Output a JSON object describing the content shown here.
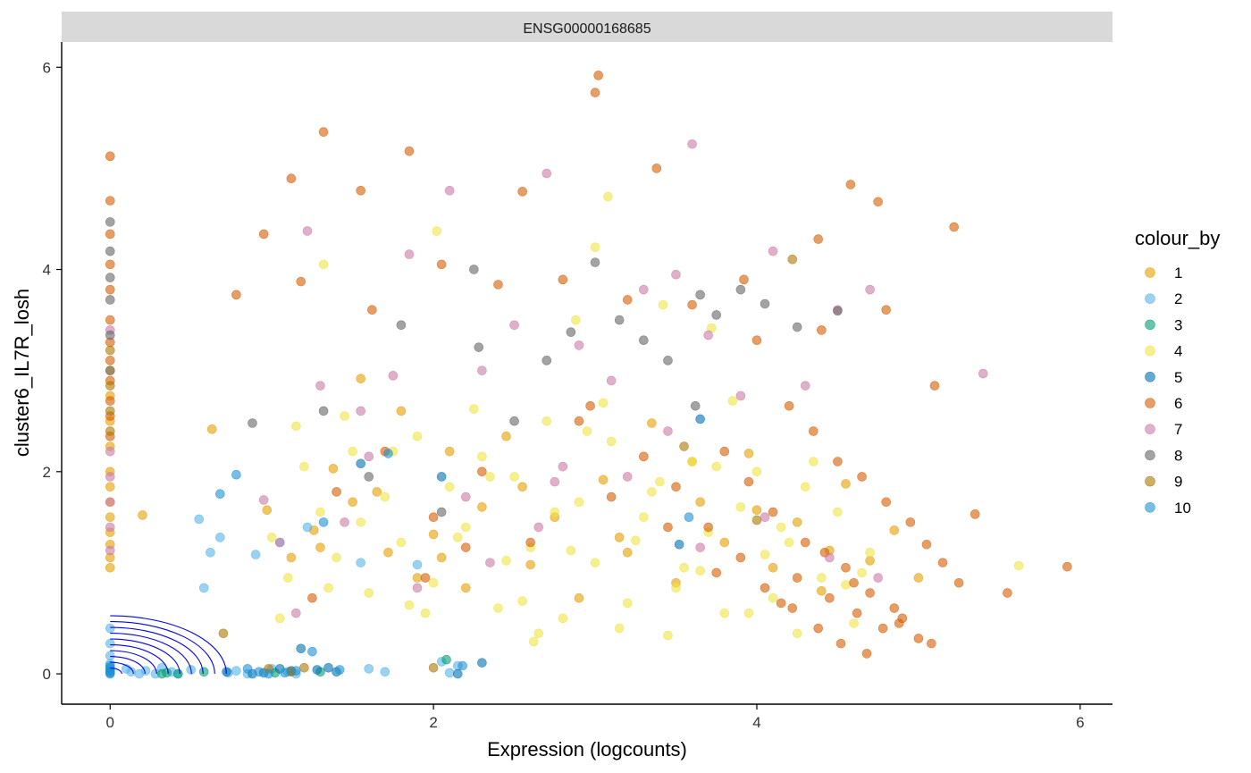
{
  "chart_data": {
    "type": "scatter",
    "title": "",
    "facet_label": "ENSG00000168685",
    "xlabel": "Expression (logcounts)",
    "ylabel": "cluster6_IL7R_losh",
    "xlim": [
      -0.3,
      6.2
    ],
    "ylim": [
      -0.3,
      6.25
    ],
    "xticks": [
      0,
      2,
      4,
      6
    ],
    "yticks": [
      0,
      2,
      4,
      6
    ],
    "grid": false,
    "legend": {
      "title": "colour_by",
      "placement": "right",
      "entries": [
        {
          "label": "1",
          "color": "#E69F00"
        },
        {
          "label": "2",
          "color": "#56B4E9"
        },
        {
          "label": "3",
          "color": "#009E73"
        },
        {
          "label": "4",
          "color": "#F0E442"
        },
        {
          "label": "5",
          "color": "#0072B2"
        },
        {
          "label": "6",
          "color": "#D55E00"
        },
        {
          "label": "7",
          "color": "#CC79A7"
        },
        {
          "label": "8",
          "color": "#666666"
        },
        {
          "label": "9",
          "color": "#AD7700"
        },
        {
          "label": "10",
          "color": "#1C91D4"
        }
      ]
    },
    "point_alpha": 0.6,
    "series": [
      {
        "name": "1",
        "color": "#E69F00",
        "x": [
          0,
          0,
          0,
          0,
          0,
          0,
          0,
          0,
          0,
          0,
          0,
          0,
          0.2,
          0.63,
          0.97,
          1.12,
          1.26,
          1.38,
          1.55,
          1.65,
          1.72,
          1.8,
          1.9,
          2.0,
          2.1,
          2.2,
          2.3,
          2.45,
          2.6,
          2.75,
          2.9,
          3.05,
          3.2,
          3.35,
          3.5,
          3.65,
          3.8,
          3.95,
          4.1,
          4.25,
          4.4,
          4.55,
          4.7,
          4.85,
          5.0,
          1.3,
          1.5,
          2.05,
          2.55,
          3.15,
          3.6,
          4.0,
          4.45
        ],
        "y": [
          1.05,
          1.15,
          1.28,
          1.4,
          1.55,
          1.7,
          1.85,
          2.0,
          2.25,
          2.5,
          2.75,
          3.0,
          1.57,
          2.42,
          1.62,
          1.15,
          1.42,
          2.03,
          2.92,
          1.8,
          1.2,
          2.6,
          0.95,
          1.38,
          2.2,
          0.85,
          1.65,
          2.35,
          1.08,
          1.55,
          0.75,
          1.92,
          1.2,
          2.48,
          0.9,
          1.7,
          1.3,
          2.18,
          1.05,
          1.5,
          0.82,
          1.88,
          1.12,
          1.42,
          0.95,
          1.25,
          1.7,
          1.15,
          1.85,
          1.35,
          2.1,
          1.62,
          1.22
        ]
      },
      {
        "name": "2",
        "color": "#56B4E9",
        "x": [
          0,
          0,
          0,
          0,
          0,
          0,
          0.1,
          0.13,
          0.18,
          0.22,
          0.28,
          0.32,
          0.38,
          0.42,
          0.5,
          0.55,
          0.58,
          0.62,
          0.68,
          0.73,
          0.78,
          0.85,
          0.9,
          1.0,
          1.05,
          1.1,
          1.15,
          1.22,
          1.55,
          1.6,
          1.7,
          1.9,
          2.05,
          2.1,
          2.15
        ],
        "y": [
          0.02,
          0.05,
          0.1,
          0.18,
          0.3,
          0.45,
          0.05,
          0.02,
          0.0,
          0.03,
          0.0,
          0.06,
          0.02,
          0.0,
          0.04,
          1.53,
          0.85,
          1.2,
          1.35,
          0.01,
          0.03,
          0.0,
          1.18,
          0.05,
          1.3,
          0.02,
          0.0,
          1.45,
          1.1,
          0.05,
          0.02,
          1.08,
          0.12,
          0.01,
          0.08
        ]
      },
      {
        "name": "3",
        "color": "#009E73",
        "x": [
          0.32,
          0.35,
          0.42,
          0.58,
          1.02,
          1.3,
          2.08
        ],
        "y": [
          0.0,
          0.01,
          0.0,
          0.02,
          0.01,
          0.02,
          0.14
        ]
      },
      {
        "name": "4",
        "color": "#F0E442",
        "x": [
          1.0,
          1.1,
          1.2,
          1.3,
          1.4,
          1.5,
          1.6,
          1.7,
          1.8,
          1.9,
          2.0,
          2.1,
          2.2,
          2.3,
          2.4,
          2.5,
          2.6,
          2.7,
          2.8,
          2.9,
          3.0,
          3.1,
          3.2,
          3.3,
          3.4,
          3.5,
          3.6,
          3.7,
          3.8,
          3.9,
          4.0,
          4.1,
          4.2,
          4.3,
          4.4,
          4.5,
          4.6,
          4.7,
          1.15,
          1.35,
          1.55,
          1.75,
          1.95,
          2.15,
          2.35,
          2.55,
          2.75,
          2.95,
          3.15,
          3.35,
          3.55,
          3.75,
          3.95,
          4.15,
          4.35,
          4.55,
          1.05,
          1.45,
          1.85,
          2.25,
          2.65,
          3.05,
          3.45,
          3.85,
          4.25,
          4.65,
          2.45,
          2.85,
          3.25,
          3.65,
          4.05,
          3.08,
          1.32,
          2.02,
          2.88,
          3.72,
          5.62,
          3.0,
          2.62,
          3.42
        ],
        "y": [
          1.35,
          0.95,
          2.05,
          1.6,
          1.15,
          2.2,
          0.8,
          1.75,
          1.3,
          2.35,
          0.9,
          1.85,
          1.45,
          2.15,
          0.65,
          1.95,
          1.25,
          2.5,
          0.55,
          1.7,
          1.1,
          2.3,
          0.7,
          1.55,
          1.9,
          0.85,
          2.1,
          1.4,
          0.6,
          1.65,
          2.0,
          0.75,
          1.3,
          1.85,
          0.95,
          1.6,
          0.5,
          1.2,
          2.45,
          0.85,
          1.5,
          2.2,
          0.6,
          1.35,
          1.95,
          0.72,
          1.6,
          2.4,
          0.45,
          1.8,
          1.05,
          2.05,
          0.6,
          1.45,
          2.1,
          0.88,
          0.55,
          2.55,
          0.68,
          2.62,
          0.4,
          2.68,
          0.38,
          2.7,
          0.4,
          1.0,
          1.12,
          1.22,
          1.32,
          1.02,
          1.18,
          4.72,
          4.05,
          4.38,
          3.5,
          3.42,
          1.07,
          4.22,
          0.32,
          3.65
        ]
      },
      {
        "name": "5",
        "color": "#0072B2",
        "x": [
          0.72,
          0.88,
          0.95,
          1.05,
          1.12,
          1.18,
          1.28,
          1.35,
          1.4,
          1.55,
          2.05,
          2.15,
          2.3,
          3.52,
          3.65
        ],
        "y": [
          0.02,
          0.0,
          0.01,
          0.05,
          0.03,
          0.25,
          0.04,
          0.06,
          0.02,
          2.08,
          1.95,
          0.0,
          0.11,
          1.28,
          2.52
        ]
      },
      {
        "name": "6",
        "color": "#D55E00",
        "x": [
          0,
          0,
          0,
          0,
          0,
          0,
          0,
          0,
          0,
          0,
          0,
          0,
          1.12,
          1.32,
          1.55,
          1.85,
          2.55,
          3.02,
          3.38,
          3.92,
          4.38,
          4.58,
          4.75,
          5.22,
          0.78,
          0.95,
          1.18,
          1.62,
          2.05,
          2.4,
          2.8,
          3.2,
          3.6,
          4.0,
          4.4,
          4.8,
          5.1,
          5.35,
          5.55,
          5.92,
          4.2,
          4.35,
          4.5,
          4.65,
          4.8,
          4.95,
          5.05,
          5.15,
          4.25,
          4.45,
          4.62,
          4.78,
          4.9,
          5.0,
          3.8,
          3.95,
          4.1,
          4.3,
          4.55,
          4.7,
          4.85,
          5.25,
          3.5,
          3.7,
          3.9,
          4.05,
          4.22,
          4.38,
          4.52,
          4.68,
          1.4,
          1.7,
          2.0,
          2.3,
          2.6,
          2.9,
          3.1,
          3.3,
          3.45,
          3.75,
          4.15,
          4.42,
          4.6,
          4.88,
          5.08,
          3.0,
          2.97,
          2.2,
          1.95,
          1.25
        ],
        "y": [
          5.12,
          4.68,
          4.35,
          4.05,
          3.8,
          3.5,
          3.28,
          3.1,
          2.9,
          2.7,
          2.55,
          2.35,
          4.9,
          5.36,
          4.78,
          5.17,
          4.77,
          5.92,
          5.0,
          3.9,
          4.3,
          4.84,
          4.67,
          4.42,
          3.75,
          4.35,
          3.88,
          3.6,
          4.05,
          3.85,
          3.9,
          3.7,
          3.65,
          3.3,
          3.4,
          3.6,
          2.85,
          1.58,
          0.8,
          1.06,
          2.65,
          2.4,
          2.1,
          1.95,
          1.7,
          1.5,
          1.28,
          1.1,
          0.95,
          0.75,
          0.6,
          0.45,
          0.55,
          0.35,
          2.2,
          1.9,
          1.6,
          1.3,
          1.05,
          0.8,
          0.65,
          0.9,
          1.85,
          1.45,
          1.15,
          0.85,
          0.65,
          0.45,
          0.3,
          0.2,
          1.8,
          2.2,
          1.55,
          2.0,
          1.3,
          2.5,
          1.75,
          2.15,
          1.45,
          1.0,
          0.7,
          1.2,
          0.9,
          0.5,
          0.3,
          5.75,
          2.65,
          1.25,
          0.95,
          0.75
        ]
      },
      {
        "name": "7",
        "color": "#CC79A7",
        "x": [
          0,
          0,
          0,
          0,
          0,
          0,
          1.22,
          1.3,
          1.55,
          1.75,
          1.85,
          2.1,
          2.3,
          2.5,
          2.7,
          2.9,
          3.1,
          3.3,
          3.5,
          3.7,
          3.9,
          4.1,
          4.3,
          4.5,
          4.7,
          5.4,
          3.6,
          2.75,
          0.95,
          1.15,
          1.45,
          1.9,
          2.35,
          2.8,
          3.2,
          3.65,
          4.05,
          4.45,
          4.75,
          1.05,
          1.6,
          2.2,
          2.65,
          3.45
        ],
        "y": [
          1.22,
          1.45,
          1.7,
          1.95,
          2.2,
          3.4,
          4.38,
          2.85,
          2.6,
          2.95,
          4.15,
          4.78,
          3.0,
          3.45,
          4.95,
          3.25,
          2.9,
          3.8,
          3.95,
          3.35,
          2.75,
          4.18,
          2.85,
          3.6,
          3.8,
          2.97,
          5.24,
          1.9,
          1.72,
          0.6,
          1.5,
          0.85,
          1.1,
          2.05,
          1.95,
          1.25,
          1.55,
          1.15,
          0.95,
          1.3,
          2.15,
          1.75,
          1.45,
          2.4
        ]
      },
      {
        "name": "8",
        "color": "#666666",
        "x": [
          0,
          0,
          0,
          0,
          0,
          0,
          0.88,
          1.32,
          1.6,
          1.8,
          2.05,
          2.28,
          2.5,
          2.7,
          2.85,
          3.0,
          3.15,
          3.3,
          3.45,
          3.62,
          3.75,
          3.9,
          4.05,
          4.25,
          4.5,
          3.65,
          2.25
        ],
        "y": [
          4.47,
          4.18,
          3.92,
          3.7,
          3.35,
          3.0,
          2.48,
          2.6,
          1.95,
          3.45,
          1.6,
          3.23,
          2.5,
          3.1,
          3.38,
          4.07,
          3.5,
          3.3,
          3.1,
          2.65,
          3.55,
          3.8,
          3.66,
          3.43,
          3.59,
          3.75,
          4.0
        ]
      },
      {
        "name": "9",
        "color": "#AD7700",
        "x": [
          0,
          0,
          0,
          0,
          0.7,
          0.98,
          1.12,
          1.2,
          2.0,
          3.55,
          4.0,
          4.22
        ],
        "y": [
          3.2,
          2.85,
          2.6,
          2.4,
          0.4,
          0.05,
          0.02,
          0.06,
          0.06,
          2.25,
          1.52,
          4.1
        ]
      },
      {
        "name": "10",
        "color": "#1C91D4",
        "x": [
          0,
          0,
          0,
          0,
          0,
          0.68,
          0.78,
          0.85,
          0.92,
          0.98,
          1.08,
          1.15,
          1.25,
          1.32,
          1.42,
          1.72,
          2.18,
          3.58
        ],
        "y": [
          0.0,
          0.01,
          0.03,
          0.06,
          0.08,
          1.78,
          1.97,
          0.05,
          0.02,
          0.0,
          0.01,
          0.03,
          0.22,
          1.5,
          0.04,
          2.18,
          0.08,
          1.55
        ]
      }
    ]
  }
}
